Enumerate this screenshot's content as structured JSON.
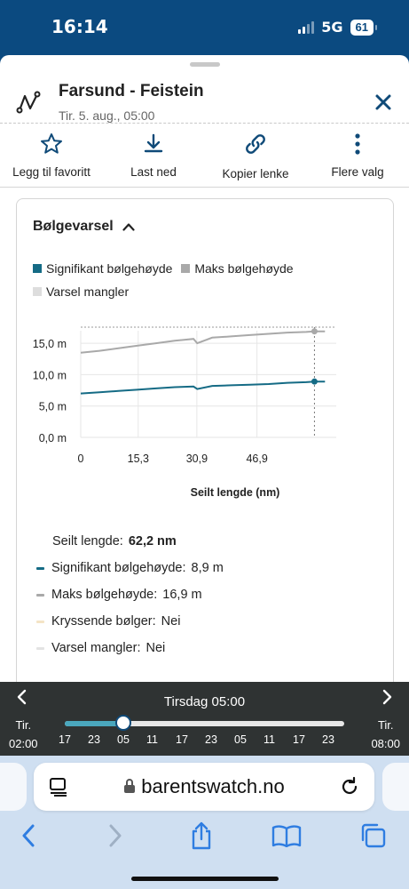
{
  "status": {
    "time": "16:14",
    "network": "5G",
    "battery": "61"
  },
  "route": {
    "title": "Farsund - Feistein",
    "subtitle": "Tir. 5. aug., 05:00"
  },
  "actions": [
    {
      "label": "Legg til favoritt",
      "icon": "star-icon"
    },
    {
      "label": "Last ned",
      "icon": "download-icon"
    },
    {
      "label": "Kopier lenke",
      "icon": "link-icon"
    },
    {
      "label": "Flere valg",
      "icon": "more-vertical-icon"
    }
  ],
  "card": {
    "title": "Bølgevarsel",
    "legend": [
      {
        "label": "Signifikant bølgehøyde",
        "color": "#156b85"
      },
      {
        "label": "Maks bølgehøyde",
        "color": "#a9a9a9"
      },
      {
        "label": "Varsel mangler",
        "color": "#dddddd"
      }
    ]
  },
  "chart_data": {
    "type": "line",
    "xlabel": "Seilt lengde (nm)",
    "ylabel": "",
    "x_ticks": [
      "0",
      "15,3",
      "30,9",
      "46,9"
    ],
    "y_ticks": [
      "0,0 m",
      "5,0 m",
      "10,0 m",
      "15,0 m"
    ],
    "xlim": [
      0,
      68
    ],
    "ylim": [
      0,
      17
    ],
    "cursor_x": 62.2,
    "series": [
      {
        "name": "Signifikant bølgehøyde",
        "color": "#156b85",
        "x": [
          0,
          5,
          10,
          15,
          20,
          25,
          30,
          31,
          35,
          40,
          45,
          50,
          55,
          60,
          62.2,
          65
        ],
        "y": [
          7.0,
          7.2,
          7.4,
          7.6,
          7.8,
          8.0,
          8.1,
          7.7,
          8.2,
          8.3,
          8.4,
          8.5,
          8.7,
          8.8,
          8.9,
          8.9
        ]
      },
      {
        "name": "Maks bølgehøyde",
        "color": "#a9a9a9",
        "x": [
          0,
          5,
          10,
          15,
          20,
          25,
          30,
          31,
          35,
          40,
          45,
          50,
          55,
          60,
          62.2,
          65
        ],
        "y": [
          13.5,
          13.8,
          14.2,
          14.6,
          15.0,
          15.4,
          15.7,
          15.0,
          15.9,
          16.1,
          16.3,
          16.5,
          16.7,
          16.8,
          16.9,
          16.9
        ]
      }
    ]
  },
  "readout": {
    "distance_label": "Seilt lengde:",
    "distance_value": "62,2 nm",
    "rows": [
      {
        "label": "Signifikant bølgehøyde:",
        "value": "8,9 m",
        "color": "#156b85"
      },
      {
        "label": "Maks bølgehøyde:",
        "value": "16,9 m",
        "color": "#a9a9a9"
      },
      {
        "label": "Kryssende bølger:",
        "value": "Nei",
        "color": "#f4e4c6"
      },
      {
        "label": "Varsel mangler:",
        "value": "Nei",
        "color": "#e3e3e3"
      }
    ]
  },
  "timeline": {
    "date": "Tirsdag 05:00",
    "start_day": "Tir.",
    "start_time": "02:00",
    "end_day": "Tir.",
    "end_time": "08:00",
    "ticks": [
      "17",
      "23",
      "05",
      "11",
      "17",
      "23",
      "05",
      "11",
      "17",
      "23"
    ],
    "progress": 0.21
  },
  "browser": {
    "url": "barentswatch.no"
  }
}
